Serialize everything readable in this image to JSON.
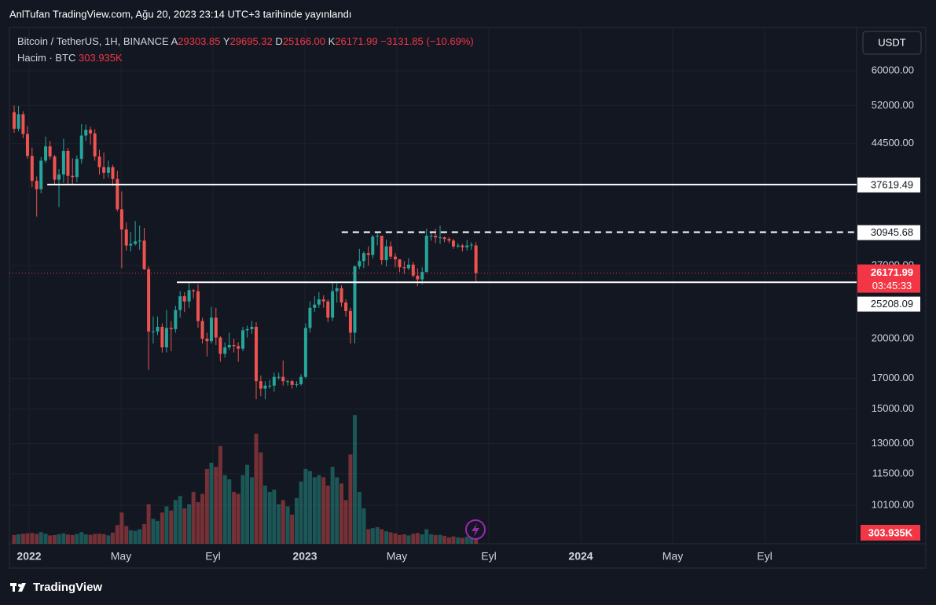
{
  "header": "AnlTufan TradingView.com, Ağu 20, 2023 23:14 UTC+3 tarihinde yayınlandı",
  "footer": "TradingView",
  "currency_button": "USDT",
  "chart_data": {
    "type": "candlestick",
    "legend": {
      "symbol": "Bitcoin / TetherUS, 1H, BINANCE",
      "items": [
        {
          "key": "A",
          "value": "29303.85"
        },
        {
          "key": "Y",
          "value": "29695.32"
        },
        {
          "key": "D",
          "value": "25166.00"
        },
        {
          "key": "K",
          "value": "26171.99"
        }
      ],
      "change": "−3131.85 (−10.69%)",
      "volume_title": "Hacim · BTC",
      "volume_value": "303.935K"
    },
    "up_color": "#26a69a",
    "down_color": "#ef5350",
    "log_scale": true,
    "grid": true,
    "x": [
      -0.65,
      -0.46,
      -0.26,
      -0.07,
      0.13,
      0.33,
      0.52,
      0.72,
      0.91,
      1.11,
      1.3,
      1.5,
      1.69,
      1.89,
      2.08,
      2.28,
      2.47,
      2.67,
      2.86,
      3.06,
      3.25,
      3.45,
      3.64,
      3.84,
      4.03,
      4.23,
      4.42,
      4.62,
      4.81,
      5.01,
      5.2,
      5.4,
      5.59,
      5.79,
      5.98,
      6.18,
      6.37,
      6.57,
      6.76,
      6.96,
      7.15,
      7.35,
      7.54,
      7.74,
      7.93,
      8.13,
      8.32,
      8.52,
      8.71,
      8.91,
      9.1,
      9.3,
      9.49,
      9.69,
      9.88,
      10.08,
      10.27,
      10.47,
      10.66,
      10.86,
      11.05,
      11.25,
      11.44,
      11.64,
      11.83,
      12.03,
      12.22,
      12.42,
      12.61,
      12.81,
      13.0,
      13.2,
      13.39,
      13.59,
      13.78,
      13.98,
      14.17,
      14.37,
      14.56,
      14.76,
      14.95,
      15.15,
      15.34,
      15.54,
      15.73,
      15.93,
      16.12,
      16.32,
      16.51,
      16.71,
      16.9,
      17.1,
      17.29,
      17.49,
      17.68,
      17.88,
      18.07,
      18.27,
      18.46,
      18.66,
      18.85,
      19.05,
      19.24,
      19.44
    ],
    "open": [
      50600,
      47300,
      50200,
      46300,
      42300,
      38200,
      36900,
      41500,
      44000,
      42200,
      38400,
      39200,
      43200,
      39000,
      38800,
      41800,
      46000,
      47100,
      46400,
      42200,
      40400,
      39500,
      40400,
      38500,
      34000,
      31300,
      29300,
      29500,
      29800,
      29900,
      26600,
      20600,
      20600,
      21000,
      19300,
      20900,
      20800,
      22500,
      23800,
      23300,
      24400,
      24300,
      21500,
      20000,
      19800,
      21800,
      20100,
      18800,
      19300,
      19500,
      19400,
      19200,
      20700,
      20800,
      21000,
      16800,
      16300,
      16500,
      16500,
      17100,
      17100,
      16800,
      16800,
      16550,
      16600,
      17100,
      20900,
      22700,
      23000,
      23500,
      23300,
      21800,
      24300,
      24600,
      23200,
      22400,
      20500,
      26900,
      27500,
      28400,
      28200,
      30400,
      30500,
      27600,
      29200,
      28000,
      27700,
      26800,
      26700,
      27100,
      25900,
      25500,
      26300,
      30500,
      30500,
      30300,
      30300,
      30100,
      29900,
      29200,
      29300,
      29100,
      29300,
      29303.85
    ],
    "high": [
      52000,
      51900,
      50800,
      47800,
      43800,
      38900,
      42100,
      45800,
      45000,
      42500,
      40100,
      45400,
      43700,
      41900,
      42400,
      48200,
      48100,
      47700,
      47200,
      43400,
      42900,
      41500,
      40800,
      39800,
      36600,
      32200,
      31000,
      32400,
      31800,
      31500,
      26900,
      21900,
      21900,
      21300,
      22500,
      21500,
      22900,
      24300,
      24200,
      25200,
      24500,
      25000,
      21800,
      20500,
      22800,
      22700,
      20200,
      19700,
      20500,
      20000,
      19700,
      21000,
      21100,
      21500,
      21400,
      17200,
      16800,
      16900,
      17400,
      17400,
      18300,
      16900,
      16900,
      16800,
      17300,
      21300,
      23300,
      23800,
      24200,
      23900,
      23500,
      25200,
      25100,
      24900,
      23500,
      22700,
      27000,
      28900,
      28600,
      29200,
      30600,
      31000,
      30500,
      30000,
      29800,
      28400,
      27700,
      27500,
      27800,
      27400,
      26700,
      26800,
      31400,
      31000,
      31400,
      31800,
      30400,
      30300,
      30100,
      29600,
      29500,
      30000,
      29700,
      29695.32
    ],
    "low": [
      46500,
      46800,
      45500,
      41800,
      37200,
      33000,
      36300,
      41100,
      41700,
      37500,
      34300,
      37900,
      37600,
      37600,
      38000,
      41000,
      45000,
      44300,
      41500,
      39200,
      38500,
      38700,
      37400,
      33700,
      26700,
      28700,
      28600,
      29300,
      28800,
      26500,
      17600,
      19600,
      20300,
      18900,
      18900,
      19000,
      20500,
      21800,
      22300,
      22700,
      23600,
      20900,
      19600,
      18600,
      19600,
      19500,
      18200,
      18500,
      19100,
      18900,
      18200,
      19000,
      20100,
      20400,
      15600,
      15800,
      15600,
      16300,
      16100,
      16900,
      16500,
      16500,
      16300,
      16400,
      16500,
      17000,
      20500,
      22300,
      22700,
      22700,
      21400,
      21500,
      23200,
      22800,
      21900,
      19600,
      19600,
      26600,
      26700,
      27000,
      27800,
      29300,
      27100,
      26900,
      27700,
      26800,
      26300,
      26100,
      26500,
      25700,
      24800,
      25000,
      26200,
      29900,
      29600,
      29500,
      29700,
      29600,
      28900,
      29000,
      28600,
      28700,
      28800,
      25166.0
    ],
    "close": [
      47300,
      50200,
      46300,
      42300,
      38200,
      36900,
      41500,
      44000,
      42200,
      38400,
      39200,
      43200,
      39000,
      38800,
      41800,
      46000,
      47100,
      46400,
      42200,
      40400,
      39500,
      40400,
      38500,
      34000,
      31300,
      29300,
      29500,
      29800,
      29900,
      26600,
      20600,
      20600,
      21000,
      19300,
      20900,
      20800,
      22500,
      23800,
      23300,
      24400,
      24300,
      21500,
      20000,
      19800,
      21800,
      20100,
      18800,
      19300,
      19500,
      19400,
      19200,
      20700,
      20800,
      21000,
      16800,
      16300,
      16500,
      16500,
      17100,
      17100,
      16800,
      16800,
      16550,
      16600,
      17100,
      20900,
      22700,
      23000,
      23500,
      23300,
      21800,
      24300,
      24600,
      23200,
      22400,
      20500,
      26900,
      27500,
      28400,
      28200,
      30400,
      30500,
      27600,
      29200,
      28000,
      27700,
      26800,
      26700,
      27100,
      25900,
      25500,
      26300,
      30500,
      30500,
      30300,
      30300,
      30100,
      29900,
      29200,
      29300,
      29100,
      29300,
      29400,
      26171.99
    ],
    "volume": [
      420000,
      450000,
      480000,
      500000,
      520000,
      470000,
      560000,
      480000,
      400000,
      420000,
      460000,
      500000,
      440000,
      420000,
      470000,
      560000,
      450000,
      430000,
      470000,
      480000,
      460000,
      400000,
      530000,
      900000,
      1500000,
      850000,
      650000,
      620000,
      700000,
      950000,
      1900000,
      1200000,
      1100000,
      1500000,
      1800000,
      1600000,
      2100000,
      2300000,
      1700000,
      1900000,
      2500000,
      2000000,
      2400000,
      3600000,
      3900000,
      3700000,
      4700000,
      3300000,
      3100000,
      2500000,
      2400000,
      3300000,
      3800000,
      3200000,
      5300000,
      4400000,
      2800000,
      2500000,
      2600000,
      1900000,
      2100000,
      1800000,
      1400000,
      2200000,
      3000000,
      3600000,
      3500000,
      3200000,
      3300000,
      3200000,
      2800000,
      3700000,
      3200000,
      2900000,
      2100000,
      4300000,
      6200000,
      2500000,
      1700000,
      700000,
      750000,
      800000,
      700000,
      600000,
      550000,
      500000,
      420000,
      450000,
      400000,
      480000,
      520000,
      450000,
      700000,
      450000,
      420000,
      430000,
      380000,
      300000,
      350000,
      300000,
      280000,
      330000,
      300000,
      303935
    ],
    "vlim": [
      0,
      7000000
    ],
    "xlim": [
      -0.855,
      36
    ],
    "xticks": [
      {
        "value": 0,
        "label": "2022"
      },
      {
        "value": 4,
        "label": "May"
      },
      {
        "value": 8,
        "label": "Eyl"
      },
      {
        "value": 12,
        "label": "2023"
      },
      {
        "value": 16,
        "label": "May"
      },
      {
        "value": 20,
        "label": "Eyl"
      },
      {
        "value": 24,
        "label": "2024"
      },
      {
        "value": 28,
        "label": "May"
      },
      {
        "value": 32,
        "label": "Eyl"
      }
    ],
    "ylim": [
      8630,
      71630
    ],
    "yticks": [
      {
        "value": 60000,
        "label": "60000.00"
      },
      {
        "value": 52000,
        "label": "52000.00"
      },
      {
        "value": 44500,
        "label": "44500.00"
      },
      {
        "value": 27000,
        "label": "27000.00"
      },
      {
        "value": 20000,
        "label": "20000.00"
      },
      {
        "value": 17000,
        "label": "17000.00"
      },
      {
        "value": 15000,
        "label": "15000.00"
      },
      {
        "value": 13000,
        "label": "13000.00"
      },
      {
        "value": 11500,
        "label": "11500.00"
      },
      {
        "value": 10100,
        "label": "10100.00"
      }
    ],
    "levels": [
      {
        "value": 37619.49,
        "from_x": 0.79,
        "style": "solid"
      },
      {
        "value": 30945.68,
        "from_x": 13.6,
        "style": "dashed"
      },
      {
        "value": 25208.09,
        "from_x": 6.43,
        "style": "solid"
      }
    ],
    "last_price": {
      "value": 26171.99,
      "countdown": "03:45:33"
    }
  }
}
